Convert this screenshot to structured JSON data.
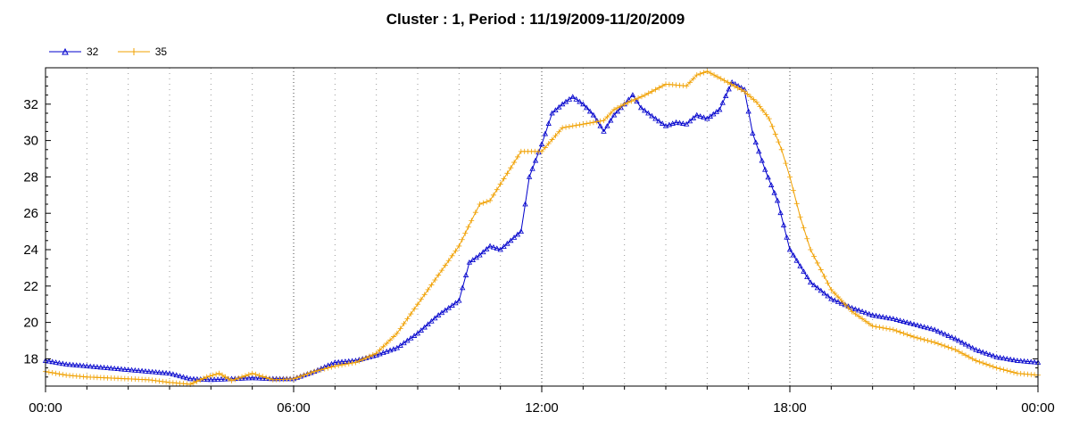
{
  "chart_data": {
    "type": "line",
    "title": "Cluster : 1, Period : 11/19/2009-11/20/2009",
    "xlabel": "",
    "ylabel": "",
    "x_unit": "hours",
    "xlim": [
      0,
      24
    ],
    "ylim": [
      16.5,
      34
    ],
    "x_ticks": [
      0,
      6,
      12,
      18,
      24
    ],
    "x_tick_labels": [
      "00:00",
      "06:00",
      "12:00",
      "18:00",
      "00:00"
    ],
    "y_ticks": [
      18,
      20,
      22,
      24,
      26,
      28,
      30,
      32
    ],
    "y_tick_labels": [
      "18",
      "20",
      "22",
      "24",
      "26",
      "28",
      "30",
      "32"
    ],
    "grid": "dotted vertical",
    "legend_position": "top-left",
    "series": [
      {
        "name": "32",
        "color": "#0000cc",
        "marker": "triangle",
        "points": [
          [
            0,
            17.9
          ],
          [
            0.5,
            17.7
          ],
          [
            1,
            17.6
          ],
          [
            1.5,
            17.5
          ],
          [
            2,
            17.4
          ],
          [
            2.5,
            17.3
          ],
          [
            3,
            17.2
          ],
          [
            3.5,
            16.9
          ],
          [
            4,
            16.85
          ],
          [
            4.5,
            16.9
          ],
          [
            5,
            16.95
          ],
          [
            5.5,
            16.9
          ],
          [
            6,
            16.9
          ],
          [
            6.5,
            17.3
          ],
          [
            7,
            17.8
          ],
          [
            7.5,
            17.9
          ],
          [
            8,
            18.2
          ],
          [
            8.5,
            18.6
          ],
          [
            9,
            19.4
          ],
          [
            9.5,
            20.4
          ],
          [
            10,
            21.2
          ],
          [
            10.25,
            23.3
          ],
          [
            10.5,
            23.7
          ],
          [
            10.75,
            24.2
          ],
          [
            11,
            24.0
          ],
          [
            11.5,
            25.0
          ],
          [
            11.7,
            28.0
          ],
          [
            12,
            29.8
          ],
          [
            12.25,
            31.5
          ],
          [
            12.5,
            32.0
          ],
          [
            12.75,
            32.4
          ],
          [
            13,
            32.0
          ],
          [
            13.25,
            31.4
          ],
          [
            13.5,
            30.5
          ],
          [
            13.75,
            31.4
          ],
          [
            14,
            32.0
          ],
          [
            14.2,
            32.5
          ],
          [
            14.4,
            31.8
          ],
          [
            14.75,
            31.2
          ],
          [
            15,
            30.8
          ],
          [
            15.25,
            31.0
          ],
          [
            15.5,
            30.9
          ],
          [
            15.75,
            31.4
          ],
          [
            16,
            31.2
          ],
          [
            16.3,
            31.7
          ],
          [
            16.6,
            33.2
          ],
          [
            16.9,
            32.8
          ],
          [
            17.1,
            30.4
          ],
          [
            17.4,
            28.4
          ],
          [
            17.7,
            26.7
          ],
          [
            18,
            24.0
          ],
          [
            18.5,
            22.2
          ],
          [
            19,
            21.3
          ],
          [
            19.5,
            20.8
          ],
          [
            20,
            20.4
          ],
          [
            20.5,
            20.2
          ],
          [
            21,
            19.9
          ],
          [
            21.5,
            19.6
          ],
          [
            22,
            19.1
          ],
          [
            22.5,
            18.5
          ],
          [
            23,
            18.1
          ],
          [
            23.5,
            17.9
          ],
          [
            24,
            17.8
          ]
        ]
      },
      {
        "name": "35",
        "color": "#f0a000",
        "marker": "plus",
        "points": [
          [
            0,
            17.3
          ],
          [
            0.5,
            17.1
          ],
          [
            1,
            17.0
          ],
          [
            1.5,
            16.95
          ],
          [
            2,
            16.9
          ],
          [
            2.5,
            16.85
          ],
          [
            3,
            16.7
          ],
          [
            3.5,
            16.6
          ],
          [
            3.9,
            17.0
          ],
          [
            4.2,
            17.2
          ],
          [
            4.5,
            16.8
          ],
          [
            5,
            17.2
          ],
          [
            5.5,
            16.85
          ],
          [
            6,
            16.9
          ],
          [
            6.5,
            17.3
          ],
          [
            7,
            17.6
          ],
          [
            7.5,
            17.8
          ],
          [
            8,
            18.3
          ],
          [
            8.5,
            19.4
          ],
          [
            9,
            21.0
          ],
          [
            9.5,
            22.6
          ],
          [
            10,
            24.2
          ],
          [
            10.3,
            25.6
          ],
          [
            10.5,
            26.5
          ],
          [
            10.75,
            26.7
          ],
          [
            11,
            27.6
          ],
          [
            11.5,
            29.4
          ],
          [
            12,
            29.4
          ],
          [
            12.5,
            30.7
          ],
          [
            13,
            30.9
          ],
          [
            13.5,
            31.1
          ],
          [
            13.75,
            31.7
          ],
          [
            14,
            32.0
          ],
          [
            14.5,
            32.5
          ],
          [
            14.75,
            32.8
          ],
          [
            15,
            33.1
          ],
          [
            15.5,
            33.0
          ],
          [
            15.75,
            33.6
          ],
          [
            16,
            33.8
          ],
          [
            16.5,
            33.2
          ],
          [
            16.9,
            32.7
          ],
          [
            17.2,
            32.1
          ],
          [
            17.5,
            31.2
          ],
          [
            17.8,
            29.5
          ],
          [
            18,
            28.0
          ],
          [
            18.25,
            25.8
          ],
          [
            18.5,
            24.0
          ],
          [
            19,
            21.8
          ],
          [
            19.5,
            20.6
          ],
          [
            20,
            19.8
          ],
          [
            20.5,
            19.6
          ],
          [
            21,
            19.2
          ],
          [
            21.5,
            18.9
          ],
          [
            22,
            18.5
          ],
          [
            22.5,
            17.9
          ],
          [
            23,
            17.5
          ],
          [
            23.5,
            17.2
          ],
          [
            24,
            17.1
          ]
        ]
      }
    ]
  }
}
